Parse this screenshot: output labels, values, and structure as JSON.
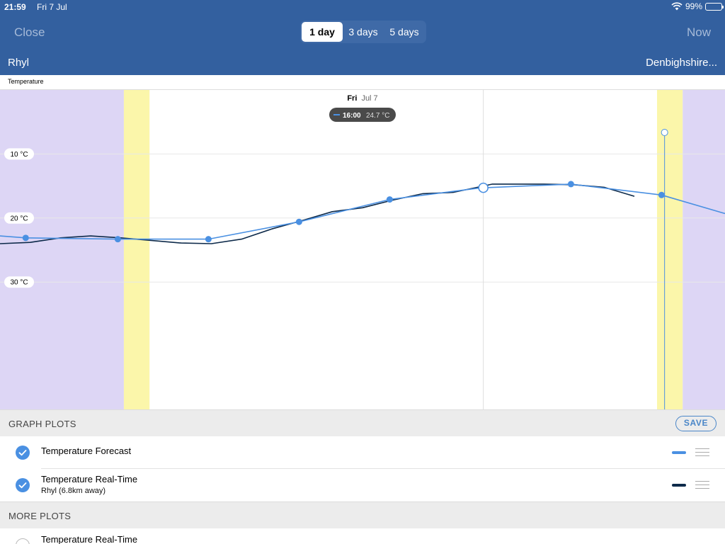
{
  "status_bar": {
    "time": "21:59",
    "date": "Fri 7 Jul",
    "battery": "99%",
    "battery_level": 0.99
  },
  "header": {
    "close_label": "Close",
    "now_label": "Now",
    "tabs": [
      {
        "label": "1 day",
        "active": true
      },
      {
        "label": "3 days",
        "active": false
      },
      {
        "label": "5 days",
        "active": false
      }
    ],
    "location": "Rhyl",
    "region": "Denbighshire..."
  },
  "graph": {
    "title": "Temperature",
    "day_label_bold": "Fri",
    "day_label_rest": "Jul 7",
    "tooltip_time": "16:00",
    "tooltip_value": "24.7 °C",
    "y_ticks": [
      "30 °C",
      "20 °C",
      "10 °C"
    ],
    "colors": {
      "forecast": "#4a90e2",
      "realtime": "#0d2a4a",
      "night": "#ddd6f5",
      "twilight": "#fbf6aa"
    }
  },
  "chart_data": {
    "type": "line",
    "ylim": [
      -10,
      40
    ],
    "xlim": [
      0,
      24
    ],
    "ticks_y": [
      10,
      20,
      30
    ],
    "series": [
      {
        "name": "Temperature Forecast",
        "color": "#4a90e2",
        "x": [
          0,
          0.85,
          3.9,
          6.9,
          9.9,
          12.9,
          15.9,
          18.9,
          21.9,
          24
        ],
        "y": [
          17.2,
          16.9,
          16.7,
          16.7,
          19.4,
          22.9,
          24.7,
          25.3,
          23.6,
          20.7
        ]
      },
      {
        "name": "Temperature Real-Time",
        "color": "#0d2a4a",
        "x": [
          0,
          1,
          2,
          3,
          4,
          5,
          6,
          7,
          8,
          9,
          10,
          11,
          12,
          13,
          14,
          15,
          16,
          16.3,
          17,
          18,
          19,
          20,
          21
        ],
        "y": [
          16.0,
          16.2,
          16.9,
          17.2,
          16.9,
          16.5,
          16.1,
          16.0,
          16.7,
          18.3,
          19.6,
          21.0,
          21.6,
          22.8,
          23.8,
          24.0,
          25.0,
          25.3,
          25.3,
          25.3,
          25.2,
          24.8,
          23.4
        ]
      }
    ],
    "highlight_x": 16,
    "forecast_markers_x": [
      0.85,
      3.9,
      6.9,
      9.9,
      12.9,
      18.9,
      21.9
    ],
    "bands": [
      {
        "from": 0,
        "to": 4.1,
        "kind": "night"
      },
      {
        "from": 4.1,
        "to": 4.95,
        "kind": "twilight"
      },
      {
        "from": 21.75,
        "to": 22.6,
        "kind": "twilight"
      },
      {
        "from": 22.6,
        "to": 24,
        "kind": "night"
      }
    ],
    "now_x": 22
  },
  "graph_plots": {
    "heading": "GRAPH PLOTS",
    "save_label": "SAVE",
    "items": [
      {
        "title": "Temperature Forecast",
        "subtitle": "",
        "color": "#4a90e2",
        "checked": true
      },
      {
        "title": "Temperature Real-Time",
        "subtitle": "Rhyl (6.8km away)",
        "color": "#0d2a4a",
        "checked": true
      }
    ]
  },
  "more_plots": {
    "heading": "MORE PLOTS",
    "items": [
      {
        "title": "Temperature Real-Time"
      }
    ]
  }
}
